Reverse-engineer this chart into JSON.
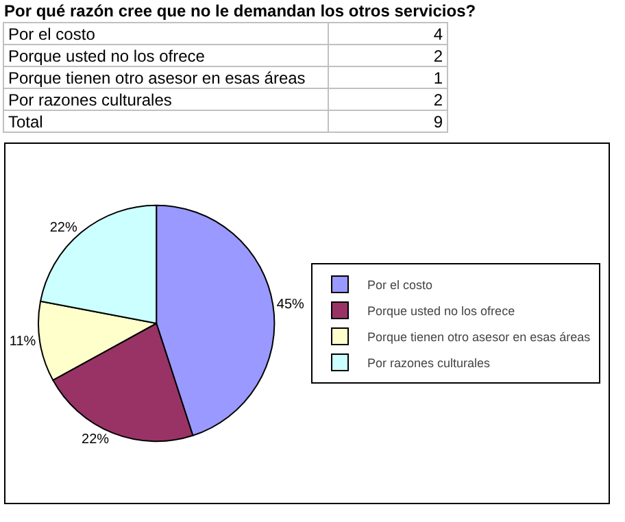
{
  "chart_data": [
    {
      "type": "other",
      "title": "Por qué razón cree que no le demandan los otros servicios?",
      "annotations": [
        "Por el costo",
        "4",
        "Porque usted no los ofrece",
        "2",
        "Porque tienen otro asesor en esas áreas",
        "1",
        "Por razones culturales",
        "2",
        "Total",
        "9"
      ]
    },
    {
      "type": "pie",
      "categories": [
        "Por el costo",
        "Porque usted no los ofrece",
        "Porque tienen otro asesor en esas áreas",
        "Por razones culturales"
      ],
      "values": [
        45,
        22,
        11,
        22
      ],
      "colors": [
        "#9999ff",
        "#993366",
        "#ffffcc",
        "#ccffff"
      ],
      "value_labels": [
        "45%",
        "22%",
        "11%",
        "22%"
      ],
      "legend": "right"
    }
  ]
}
